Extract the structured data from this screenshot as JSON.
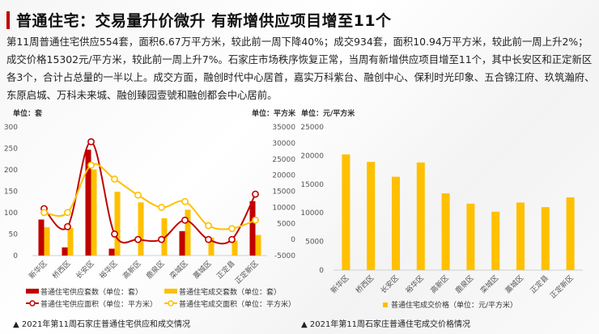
{
  "header": {
    "title": "普通住宅：交易量升价微升 有新增供应项目增至11个",
    "paragraph": "第11周普通住宅供应554套，面积6.67万平方米，较此前一周下降40%；成交934套，面积10.94万平方米，较此前一周上升2%；成交价格15302元/平方米，较此前一周上升7%。石家庄市场秩序恢复正常，当周有新增供应项目增至11个，其中长安区和正定新区各3个，合计占总量的一半以上。成交方面，融创时代中心居首，嘉实万科紫台、融创中心、保利时光印象、五合锦江府、玖筑瀚府、东原启城、万科未来城、融创臻园壹號和融创都会中心居前。"
  },
  "chart_data": [
    {
      "type": "bar+line",
      "caption": "▲ 2021年第11周石家庄普通住宅供应和成交情况",
      "ylabel_left": "单位：套",
      "ylabel_right": "单位：平方米",
      "ylim_left": [
        0,
        300
      ],
      "yticks_left": [
        0,
        50,
        100,
        150,
        200,
        250,
        300
      ],
      "ylim_right": [
        -5000,
        35000
      ],
      "yticks_right": [
        -5000,
        0,
        5000,
        10000,
        15000,
        20000,
        25000,
        30000,
        35000
      ],
      "grid": false,
      "legend_placement": "bottom",
      "categories": [
        "新华区",
        "桥西区",
        "长安区",
        "裕华区",
        "高新区",
        "鹿泉区",
        "栾城区",
        "藁城区",
        "正定县",
        "正定新区"
      ],
      "series": [
        {
          "name": "普通住宅供应套数（单位：套）",
          "type": "bar",
          "axis": "left",
          "color": "#c00000",
          "values": [
            84,
            19,
            247,
            16,
            0,
            0,
            57,
            0,
            0,
            127
          ]
        },
        {
          "name": "普通住宅成交套数（单位：套）",
          "type": "bar",
          "axis": "left",
          "color": "#ffc000",
          "values": [
            66,
            64,
            201,
            149,
            124,
            87,
            107,
            42,
            35,
            48
          ]
        },
        {
          "name": "普通住宅供应面积（单位：平方米）",
          "type": "line",
          "axis": "right",
          "color": "#c00000",
          "values": [
            9600,
            4000,
            30400,
            1700,
            0,
            0,
            6000,
            0,
            0,
            14100
          ]
        },
        {
          "name": "普通住宅成交面积（单位：平方米）",
          "type": "line",
          "axis": "right",
          "color": "#ffc000",
          "values": [
            8400,
            8400,
            23100,
            18800,
            13800,
            10000,
            11800,
            4300,
            3400,
            6000
          ]
        }
      ]
    },
    {
      "type": "bar",
      "caption": "▲ 2021年第11周石家庄普通住宅成交价格情况",
      "ylabel": "单位：元/平方米",
      "ylim": [
        0,
        25000
      ],
      "yticks": [
        0,
        5000,
        10000,
        15000,
        20000,
        25000
      ],
      "grid": false,
      "legend_placement": "bottom",
      "categories": [
        "新华区",
        "桥西区",
        "长安区",
        "裕华区",
        "高新区",
        "鹿泉区",
        "栾城区",
        "藁城区",
        "正定县",
        "正定新区"
      ],
      "series": [
        {
          "name": "普通住宅成交价格（单位：元/平方米）",
          "color": "#ffc000",
          "values": [
            20200,
            18900,
            16300,
            18800,
            13400,
            11600,
            10200,
            11800,
            11000,
            12700
          ]
        }
      ]
    }
  ]
}
